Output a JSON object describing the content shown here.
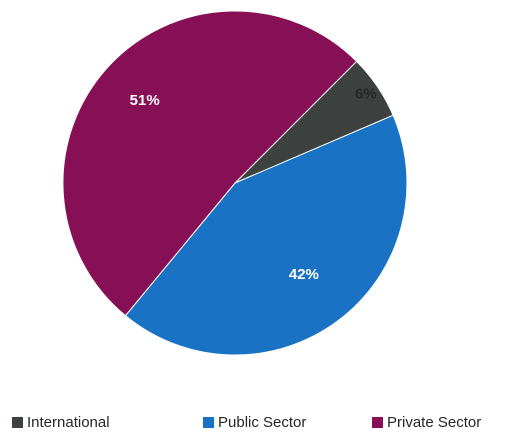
{
  "chart_data": {
    "type": "pie",
    "start_angle_deg": 45,
    "slices": [
      {
        "label": "International",
        "value": 6,
        "display": "6%",
        "color": "#3d4241",
        "label_color": "#262626"
      },
      {
        "label": "Public Sector",
        "value": 42,
        "display": "42%",
        "color": "#1a72c5",
        "label_color": "#ffffff"
      },
      {
        "label": "Private Sector",
        "value": 51,
        "display": "51%",
        "color": "#870f55",
        "label_color": "#ffffff"
      }
    ],
    "legend_position": "bottom"
  }
}
